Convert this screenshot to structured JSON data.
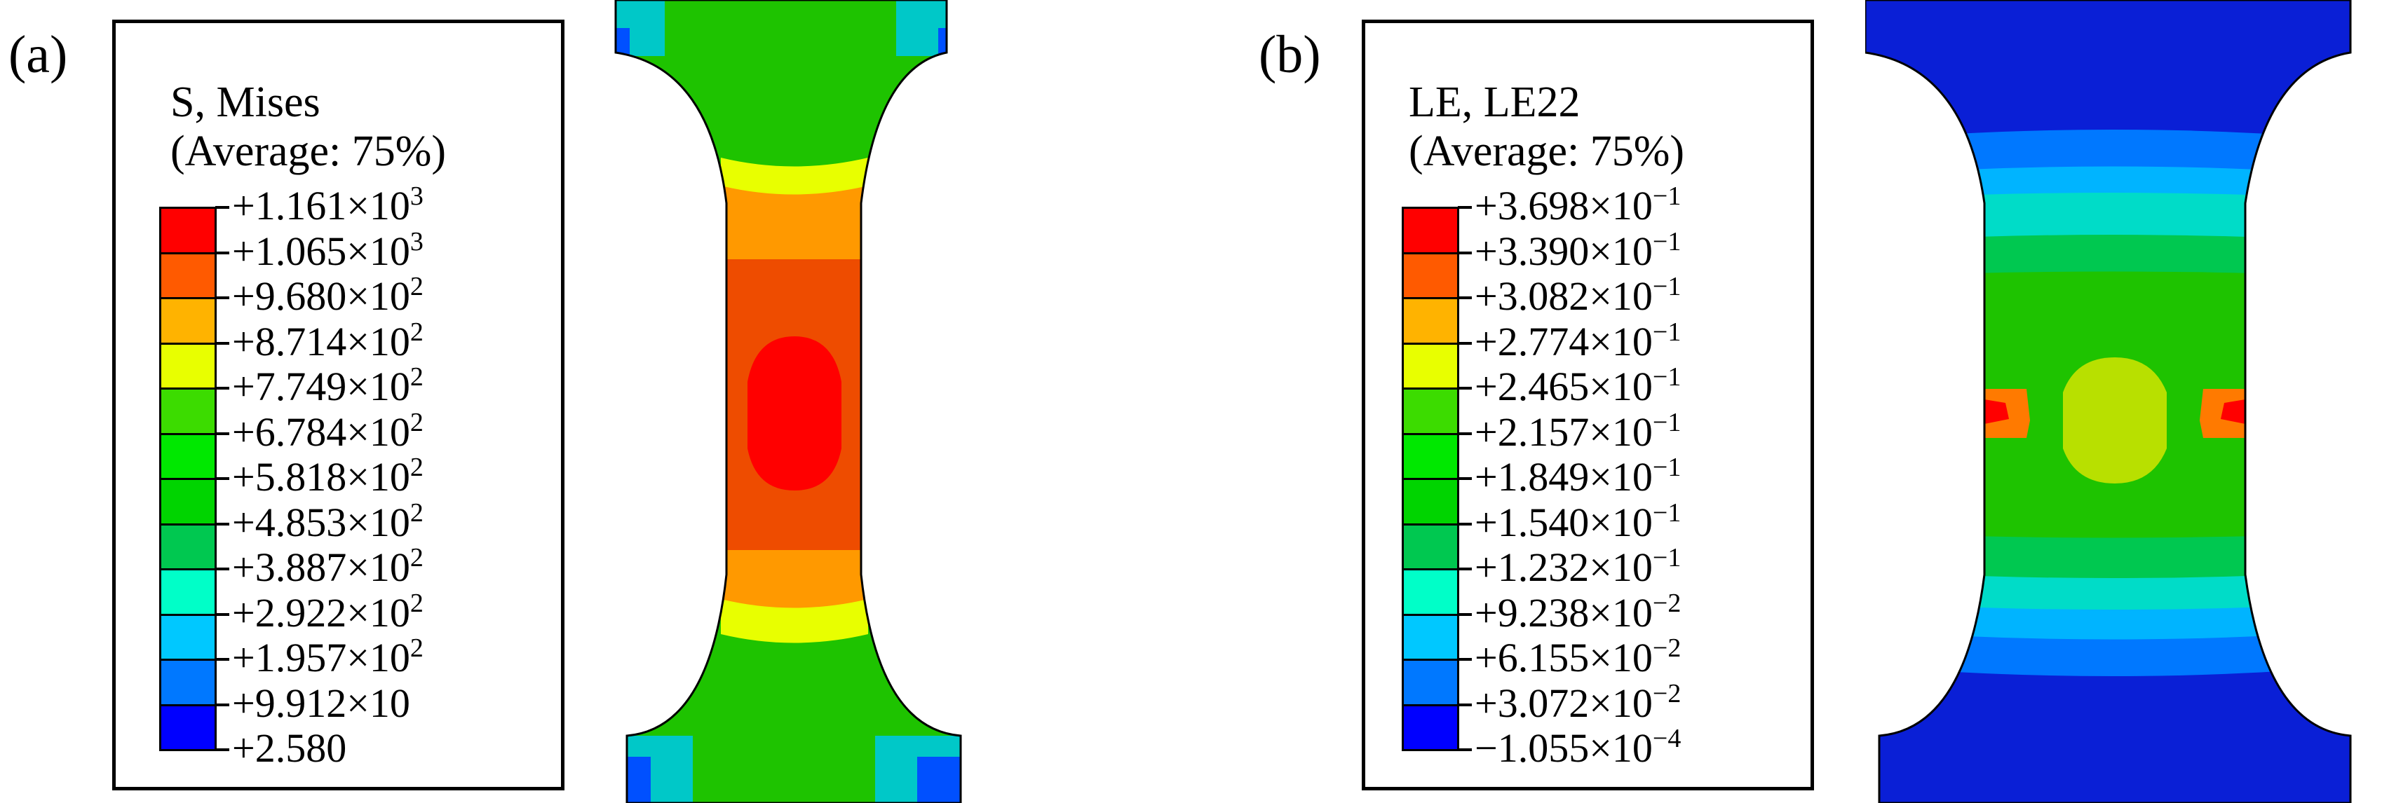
{
  "panels": [
    {
      "label": "(a)",
      "legend": {
        "title": "S, Mises",
        "subtitle": "(Average: 75%)",
        "ticks": [
          {
            "mant": "+1.161×10",
            "exp": "3"
          },
          {
            "mant": "+1.065×10",
            "exp": "3"
          },
          {
            "mant": "+9.680×10",
            "exp": "2"
          },
          {
            "mant": "+8.714×10",
            "exp": "2"
          },
          {
            "mant": "+7.749×10",
            "exp": "2"
          },
          {
            "mant": "+6.784×10",
            "exp": "2"
          },
          {
            "mant": "+5.818×10",
            "exp": "2"
          },
          {
            "mant": "+4.853×10",
            "exp": "2"
          },
          {
            "mant": "+3.887×10",
            "exp": "2"
          },
          {
            "mant": "+2.922×10",
            "exp": "2"
          },
          {
            "mant": "+1.957×10",
            "exp": "2"
          },
          {
            "mant": "+9.912×10",
            "exp": ""
          },
          {
            "mant": "+2.580",
            "exp": ""
          }
        ]
      }
    },
    {
      "label": "(b)",
      "legend": {
        "title": "LE, LE22",
        "subtitle": "(Average: 75%)",
        "ticks": [
          {
            "mant": "+3.698×10",
            "exp": "−1"
          },
          {
            "mant": "+3.390×10",
            "exp": "−1"
          },
          {
            "mant": "+3.082×10",
            "exp": "−1"
          },
          {
            "mant": "+2.774×10",
            "exp": "−1"
          },
          {
            "mant": "+2.465×10",
            "exp": "−1"
          },
          {
            "mant": "+2.157×10",
            "exp": "−1"
          },
          {
            "mant": "+1.849×10",
            "exp": "−1"
          },
          {
            "mant": "+1.540×10",
            "exp": "−1"
          },
          {
            "mant": "+1.232×10",
            "exp": "−1"
          },
          {
            "mant": "+9.238×10",
            "exp": "−2"
          },
          {
            "mant": "+6.155×10",
            "exp": "−2"
          },
          {
            "mant": "+3.072×10",
            "exp": "−2"
          },
          {
            "mant": "−1.055×10",
            "exp": "−4"
          }
        ]
      }
    }
  ],
  "colormap": [
    "#ff0000",
    "#ff5a00",
    "#ffb300",
    "#e8ff00",
    "#3cdc00",
    "#00e800",
    "#00d400",
    "#00c850",
    "#00ffc8",
    "#00c8ff",
    "#0078ff",
    "#0000ff"
  ]
}
